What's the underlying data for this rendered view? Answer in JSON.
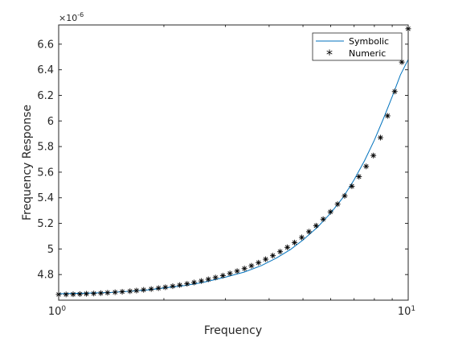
{
  "chart_data": {
    "type": "line",
    "title": "",
    "xlabel": "Frequency",
    "ylabel": "Frequency Response",
    "x_scale": "log",
    "xlim": [
      1,
      10
    ],
    "ylim": [
      4.6,
      6.75
    ],
    "y_multiplier_label": "×10",
    "y_multiplier_exponent": "-6",
    "x_tick_base": "10",
    "x_ticks": [
      {
        "value": 1,
        "exponent": "0"
      },
      {
        "value": 10,
        "exponent": "1"
      }
    ],
    "y_ticks": [
      {
        "value": 4.8,
        "label": "4.8"
      },
      {
        "value": 5.0,
        "label": "5"
      },
      {
        "value": 5.2,
        "label": "5.2"
      },
      {
        "value": 5.4,
        "label": "5.4"
      },
      {
        "value": 5.6,
        "label": "5.6"
      },
      {
        "value": 5.8,
        "label": "5.8"
      },
      {
        "value": 6.0,
        "label": "6"
      },
      {
        "value": 6.2,
        "label": "6.2"
      },
      {
        "value": 6.4,
        "label": "6.4"
      },
      {
        "value": 6.6,
        "label": "6.6"
      }
    ],
    "legend_position": "top-right",
    "grid": false,
    "series": [
      {
        "name": "Symbolic",
        "style": "line",
        "color": "#0072bd",
        "x": [
          1.0,
          1.2,
          1.4,
          1.6,
          1.8,
          2.0,
          2.3,
          2.6,
          3.0,
          3.4,
          3.8,
          4.2,
          4.6,
          5.0,
          5.5,
          6.0,
          6.5,
          7.0,
          7.5,
          8.0,
          8.5,
          9.0,
          9.5,
          10.0
        ],
        "y": [
          4.65,
          4.655,
          4.66,
          4.67,
          4.68,
          4.695,
          4.715,
          4.74,
          4.78,
          4.82,
          4.87,
          4.93,
          4.995,
          5.07,
          5.17,
          5.28,
          5.4,
          5.54,
          5.69,
          5.85,
          6.02,
          6.19,
          6.36,
          6.48
        ]
      },
      {
        "name": "Numeric",
        "style": "marker",
        "marker": "*",
        "color": "#000000",
        "x": [
          1.0,
          1.05,
          1.1,
          1.15,
          1.2,
          1.26,
          1.32,
          1.38,
          1.45,
          1.52,
          1.6,
          1.67,
          1.75,
          1.84,
          1.93,
          2.02,
          2.12,
          2.22,
          2.33,
          2.44,
          2.56,
          2.68,
          2.81,
          2.95,
          3.09,
          3.24,
          3.4,
          3.56,
          3.73,
          3.91,
          4.1,
          4.3,
          4.51,
          4.73,
          4.96,
          5.2,
          5.45,
          5.71,
          5.99,
          6.28,
          6.58,
          6.9,
          7.23,
          7.58,
          7.95,
          8.33,
          8.73,
          9.15,
          9.59,
          10.0
        ],
        "y": [
          4.645,
          4.645,
          4.646,
          4.648,
          4.65,
          4.652,
          4.655,
          4.658,
          4.662,
          4.666,
          4.67,
          4.675,
          4.681,
          4.687,
          4.694,
          4.701,
          4.709,
          4.718,
          4.728,
          4.738,
          4.75,
          4.763,
          4.777,
          4.792,
          4.809,
          4.827,
          4.847,
          4.869,
          4.893,
          4.92,
          4.948,
          4.979,
          5.013,
          5.05,
          5.09,
          5.135,
          5.182,
          5.233,
          5.29,
          5.35,
          5.415,
          5.49,
          5.565,
          5.645,
          5.73,
          5.87,
          6.04,
          6.23,
          6.46,
          6.72
        ]
      }
    ]
  }
}
